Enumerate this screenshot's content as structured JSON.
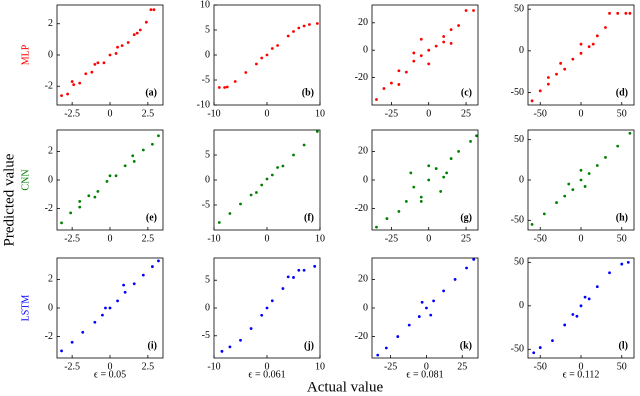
{
  "figure": {
    "ylabel": "Predicted value",
    "xlabel": "Actual value",
    "rows": [
      {
        "label": "MLP",
        "color": "#ff0000"
      },
      {
        "label": "CNN",
        "color": "#008000"
      },
      {
        "label": "LSTM",
        "color": "#0000ff"
      }
    ],
    "columns": [
      "ϵ = 0.05",
      "ϵ = 0.061",
      "ϵ = 0.081",
      "ϵ = 0.112"
    ]
  },
  "chart_data": [
    {
      "type": "scatter",
      "panel": "(a)",
      "color": "#ff0000",
      "xlim": [
        -3.5,
        3.5
      ],
      "ylim": [
        -3.2,
        3.2
      ],
      "xticks": [
        -2.5,
        0,
        2.5
      ],
      "yticks": [
        -2,
        0,
        2
      ],
      "x": [
        -3.2,
        -2.8,
        -2.4,
        -2,
        -1.6,
        -1.2,
        -0.8,
        -0.4,
        0,
        0.4,
        0.8,
        1.2,
        1.6,
        2,
        2.4,
        2.7,
        2.9,
        -2.5,
        -1,
        0.5,
        1.8
      ],
      "y": [
        -2.6,
        -2.5,
        -1.9,
        -1.8,
        -1.2,
        -1.1,
        -0.5,
        -0.5,
        0,
        0.1,
        0.6,
        0.8,
        1.3,
        1.6,
        2.1,
        2.9,
        2.9,
        -1.7,
        -0.6,
        0.5,
        1.4
      ]
    },
    {
      "type": "scatter",
      "panel": "(b)",
      "color": "#ff0000",
      "xlim": [
        -10,
        10
      ],
      "ylim": [
        -10,
        10
      ],
      "xticks": [
        -10,
        0,
        10
      ],
      "yticks": [
        -10,
        -5,
        0,
        5,
        10
      ],
      "x": [
        -9,
        -8,
        -7.5,
        -6,
        -4,
        -2,
        0,
        2,
        4,
        5,
        6,
        7,
        8,
        9.5,
        -1,
        1
      ],
      "y": [
        -6.5,
        -6.5,
        -6.4,
        -5.3,
        -3.5,
        -1.8,
        0,
        1.9,
        3.8,
        4.7,
        5.4,
        5.8,
        6.1,
        6.3,
        -0.6,
        1.3
      ]
    },
    {
      "type": "scatter",
      "panel": "(c)",
      "color": "#ff0000",
      "xlim": [
        -38,
        33
      ],
      "ylim": [
        -40,
        33
      ],
      "xticks": [
        -25,
        0,
        25
      ],
      "yticks": [
        -20,
        0,
        20
      ],
      "x": [
        -35,
        -30,
        -25,
        -20,
        -15,
        -10,
        -5,
        0,
        5,
        10,
        15,
        20,
        25,
        30,
        -20,
        -10,
        0,
        10,
        15,
        -5
      ],
      "y": [
        -36,
        -28,
        -24,
        -15,
        -16,
        -8,
        -4,
        0,
        3,
        6,
        15,
        18,
        29,
        29,
        -25,
        -2,
        -10,
        10,
        5,
        8
      ]
    },
    {
      "type": "scatter",
      "panel": "(d)",
      "color": "#ff0000",
      "xlim": [
        -65,
        65
      ],
      "ylim": [
        -65,
        55
      ],
      "xticks": [
        -50,
        0,
        50
      ],
      "yticks": [
        -50,
        0,
        50
      ],
      "x": [
        -60,
        -50,
        -40,
        -30,
        -20,
        -10,
        0,
        10,
        20,
        30,
        35,
        45,
        55,
        60,
        -25,
        0,
        15,
        -40
      ],
      "y": [
        -60,
        -48,
        -40,
        -28,
        -22,
        -10,
        -3,
        5,
        18,
        28,
        45,
        45,
        45,
        45,
        -15,
        8,
        8,
        -32
      ]
    },
    {
      "type": "scatter",
      "panel": "(e)",
      "color": "#008000",
      "xlim": [
        -3.5,
        3.5
      ],
      "ylim": [
        -3.5,
        3.5
      ],
      "xticks": [
        -2.5,
        0,
        2.5
      ],
      "yticks": [
        -2,
        0,
        2
      ],
      "x": [
        -3.2,
        -2.6,
        -2,
        -1.4,
        -0.8,
        -0.2,
        0.4,
        1,
        1.6,
        2.2,
        2.8,
        3.2,
        -2,
        0,
        1.5,
        -1
      ],
      "y": [
        -3,
        -2.3,
        -1.9,
        -1.1,
        -0.8,
        -0.1,
        0.3,
        1,
        1.3,
        2.1,
        2.5,
        3.1,
        -1.5,
        0.3,
        1.7,
        -1.2
      ]
    },
    {
      "type": "scatter",
      "panel": "(f)",
      "color": "#008000",
      "xlim": [
        -10,
        10
      ],
      "ylim": [
        -10,
        10
      ],
      "xticks": [
        -10,
        0,
        10
      ],
      "yticks": [
        -5,
        0,
        5
      ],
      "x": [
        -9,
        -7,
        -5,
        -3,
        -1,
        0,
        1,
        3,
        5,
        7,
        9.5,
        -2,
        2
      ],
      "y": [
        -8.5,
        -6.7,
        -4.8,
        -3,
        -1,
        0.2,
        1,
        2.8,
        5,
        7,
        9.7,
        -2.5,
        2.5
      ]
    },
    {
      "type": "scatter",
      "panel": "(g)",
      "color": "#008000",
      "xlim": [
        -38,
        33
      ],
      "ylim": [
        -35,
        35
      ],
      "xticks": [
        -25,
        0,
        25
      ],
      "yticks": [
        -20,
        0,
        20
      ],
      "x": [
        -35,
        -28,
        -20,
        -15,
        -10,
        -5,
        0,
        5,
        10,
        15,
        20,
        28,
        32,
        -12,
        0,
        8,
        -5,
        12
      ],
      "y": [
        -33,
        -27,
        -22,
        -15,
        -5,
        -12,
        0,
        8,
        2,
        15,
        20,
        27,
        31,
        5,
        10,
        -8,
        -15,
        5
      ]
    },
    {
      "type": "scatter",
      "panel": "(h)",
      "color": "#008000",
      "xlim": [
        -65,
        65
      ],
      "ylim": [
        -62,
        62
      ],
      "xticks": [
        -50,
        0,
        50
      ],
      "yticks": [
        -50,
        0,
        50
      ],
      "x": [
        -60,
        -45,
        -30,
        -20,
        -10,
        0,
        10,
        20,
        30,
        45,
        60,
        -15,
        5,
        0
      ],
      "y": [
        -55,
        -42,
        -28,
        -20,
        -12,
        0,
        8,
        18,
        28,
        42,
        58,
        -5,
        -8,
        12
      ]
    },
    {
      "type": "scatter",
      "panel": "(i)",
      "color": "#0000ff",
      "xlim": [
        -3.5,
        3.5
      ],
      "ylim": [
        -3.5,
        3.5
      ],
      "xticks": [
        -2.5,
        0,
        2.5
      ],
      "yticks": [
        -2,
        0,
        2
      ],
      "x": [
        -3.2,
        -2.5,
        -1.8,
        -1,
        -0.5,
        0,
        0.5,
        1,
        1.6,
        2.2,
        2.8,
        3.2,
        0.9,
        -0.3
      ],
      "y": [
        -3,
        -2.4,
        -1.7,
        -1,
        -0.5,
        0,
        0.5,
        1.1,
        1.7,
        2.3,
        2.9,
        3.3,
        1.6,
        0
      ]
    },
    {
      "type": "scatter",
      "panel": "(j)",
      "color": "#0000ff",
      "xlim": [
        -10,
        10
      ],
      "ylim": [
        -9,
        9
      ],
      "xticks": [
        -10,
        0,
        10
      ],
      "yticks": [
        -5,
        0,
        5
      ],
      "x": [
        -8.5,
        -7,
        -5,
        -3,
        -1,
        0,
        1,
        3,
        5,
        7,
        9,
        4,
        6
      ],
      "y": [
        -7.8,
        -7,
        -5.8,
        -3.7,
        -1.3,
        0,
        1.3,
        3.5,
        5.5,
        6.8,
        7.5,
        5.6,
        6.8
      ]
    },
    {
      "type": "scatter",
      "panel": "(k)",
      "color": "#0000ff",
      "xlim": [
        -38,
        36
      ],
      "ylim": [
        -35,
        35
      ],
      "xticks": [
        -25,
        0,
        25
      ],
      "yticks": [
        -20,
        0,
        20
      ],
      "x": [
        -34,
        -28,
        -20,
        -12,
        -5,
        0,
        5,
        12,
        20,
        28,
        33,
        -3,
        3
      ],
      "y": [
        -33,
        -28,
        -20,
        -12,
        -6,
        0,
        5,
        12,
        20,
        28,
        34,
        4,
        -5
      ]
    },
    {
      "type": "scatter",
      "panel": "(l)",
      "color": "#0000ff",
      "xlim": [
        -65,
        65
      ],
      "ylim": [
        -60,
        55
      ],
      "xticks": [
        -50,
        0,
        50
      ],
      "yticks": [
        -50,
        0,
        50
      ],
      "x": [
        -58,
        -50,
        -35,
        -20,
        -10,
        0,
        10,
        20,
        35,
        50,
        58,
        -5,
        5
      ],
      "y": [
        -54,
        -48,
        -40,
        -22,
        -10,
        0,
        8,
        22,
        38,
        48,
        50,
        -12,
        10
      ]
    }
  ]
}
